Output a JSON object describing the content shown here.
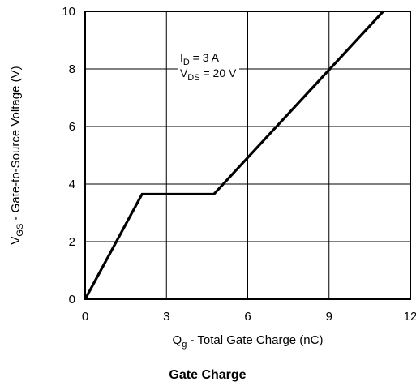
{
  "chart_data": {
    "type": "line",
    "title": "Gate Charge",
    "xlabel": {
      "main": "Q",
      "sub": "g",
      "rest": " - Total Gate Charge (nC)"
    },
    "ylabel": {
      "main": "V",
      "sub": "GS",
      "rest": " - Gate-to-Source Voltage (V)"
    },
    "xlim": [
      0,
      12
    ],
    "ylim": [
      0,
      10
    ],
    "xticks": [
      0,
      3,
      6,
      9,
      12
    ],
    "yticks": [
      0,
      2,
      4,
      6,
      8,
      10
    ],
    "grid": true,
    "series": [
      {
        "x": [
          0,
          2.1,
          4.75,
          11
        ],
        "y": [
          0,
          3.65,
          3.65,
          10
        ]
      }
    ],
    "annotations": [
      {
        "main": "I",
        "sub": "D",
        "rest": " = 3 A",
        "at": [
          3.5,
          8.25
        ]
      },
      {
        "main": "V",
        "sub": "DS",
        "rest": " = 20 V",
        "at": [
          3.5,
          7.72
        ]
      }
    ]
  }
}
